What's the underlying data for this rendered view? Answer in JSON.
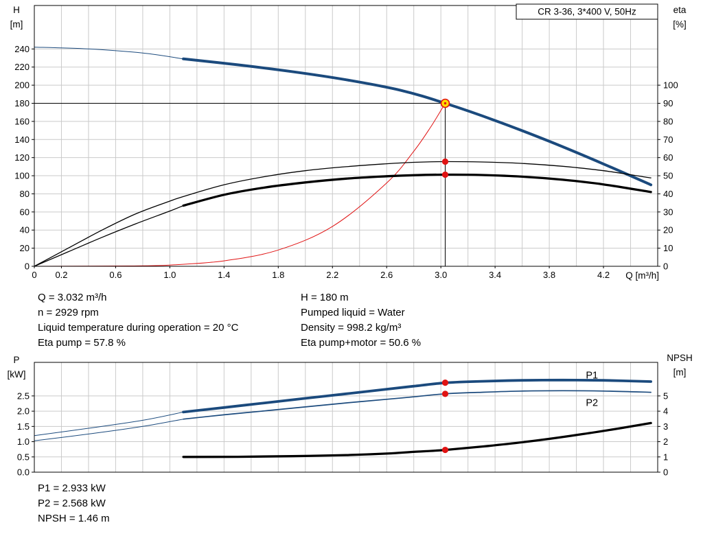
{
  "colors": {
    "blue": "#1b4a7d",
    "red": "#e01212",
    "black": "#000000",
    "grid": "#cacaca",
    "marker_yellow": "#ffdc00"
  },
  "axis_labels": {
    "top_left_name": "H",
    "top_left_unit": "[m]",
    "top_right_name": "eta",
    "top_right_unit": "[%]",
    "x_label": "Q [m³/h]",
    "bottom_left_name": "P",
    "bottom_left_unit": "[kW]",
    "bottom_right_name": "NPSH",
    "bottom_right_unit": "[m]"
  },
  "info_top": {
    "left": [
      "Q = 3.032 m³/h",
      "n = 2929 rpm",
      "Liquid temperature during operation = 20 °C",
      "Eta pump = 57.8 %"
    ],
    "right": [
      "H = 180 m",
      "Pumped liquid = Water",
      "Density = 998.2 kg/m³",
      "Eta pump+motor = 50.6 %"
    ]
  },
  "info_bottom": [
    "P1 = 2.933 kW",
    "P2 = 2.568 kW",
    "NPSH = 1.46 m"
  ],
  "chart_data": [
    {
      "name": "qh-eta-chart",
      "type": "line",
      "title": "CR 3-36, 3*400 V, 50Hz",
      "x": {
        "label": "Q [m³/h]",
        "min": 0,
        "max": 4.6,
        "minor_step": 0.2,
        "ticks": [
          0,
          0.2,
          0.6,
          1,
          1.4,
          1.8,
          2.2,
          2.6,
          3,
          3.4,
          3.8,
          4.2
        ],
        "tick_labels": [
          "0",
          "0.2",
          "0.6",
          "1.0",
          "1.4",
          "1.8",
          "2.2",
          "2.6",
          "3.0",
          "3.4",
          "3.8",
          "4.2"
        ]
      },
      "y_left": {
        "label": "H [m]",
        "min": 0,
        "max": 288,
        "ticks": [
          0,
          20,
          40,
          60,
          80,
          100,
          120,
          140,
          160,
          180,
          200,
          220,
          240
        ],
        "tick_labels": [
          "0",
          "20",
          "40",
          "60",
          "80",
          "100",
          "120",
          "140",
          "160",
          "180",
          "200",
          "220",
          "240"
        ]
      },
      "y_right": {
        "label": "eta [%]",
        "min": 0,
        "max": 144,
        "ticks": [
          0,
          10,
          20,
          30,
          40,
          50,
          60,
          70,
          80,
          90,
          100
        ],
        "tick_labels": [
          "0",
          "10",
          "20",
          "30",
          "40",
          "50",
          "60",
          "70",
          "80",
          "90",
          "100"
        ]
      },
      "series": [
        {
          "name": "pump-curve",
          "axis": "left",
          "color": "blue",
          "width": 4,
          "points": [
            [
              1.1,
              229
            ],
            [
              1.5,
              222.5
            ],
            [
              1.9,
              215
            ],
            [
              2.3,
              206
            ],
            [
              2.7,
              194.5
            ],
            [
              3.032,
              180
            ],
            [
              3.4,
              161
            ],
            [
              3.8,
              138
            ],
            [
              4.2,
              113
            ],
            [
              4.55,
              90
            ]
          ]
        },
        {
          "name": "pump-curve-low-flow",
          "axis": "left",
          "color": "blue",
          "width": 1,
          "points": [
            [
              0,
              242
            ],
            [
              0.4,
              240
            ],
            [
              0.8,
              235.5
            ],
            [
              1.1,
              229
            ]
          ]
        },
        {
          "name": "system-curve",
          "axis": "left",
          "color": "red",
          "width": 1,
          "points": [
            [
              0,
              0
            ],
            [
              0.7,
              0.4
            ],
            [
              1,
              1.4
            ],
            [
              1.4,
              6
            ],
            [
              1.8,
              18
            ],
            [
              2.2,
              44
            ],
            [
              2.6,
              92
            ],
            [
              2.8,
              127
            ],
            [
              2.93,
              155
            ],
            [
              3.032,
              180
            ]
          ]
        },
        {
          "name": "eta-pump",
          "axis": "right",
          "color": "black",
          "width": 1.3,
          "points": [
            [
              0,
              0
            ],
            [
              0.25,
              10
            ],
            [
              0.5,
              20
            ],
            [
              0.75,
              29
            ],
            [
              1,
              36
            ],
            [
              1.1,
              38.5
            ],
            [
              1.4,
              45
            ],
            [
              1.7,
              49.5
            ],
            [
              2,
              52.8
            ],
            [
              2.3,
              55
            ],
            [
              2.6,
              56.6
            ],
            [
              2.8,
              57.4
            ],
            [
              3.032,
              57.8
            ],
            [
              3.3,
              57.6
            ],
            [
              3.6,
              56.8
            ],
            [
              3.9,
              55.2
            ],
            [
              4.2,
              52.8
            ],
            [
              4.55,
              48.8
            ]
          ]
        },
        {
          "name": "eta-pump-motor",
          "axis": "right",
          "color": "black",
          "width": 3.3,
          "points": [
            [
              1.1,
              33.5
            ],
            [
              1.4,
              39.5
            ],
            [
              1.7,
              43.5
            ],
            [
              2,
              46.3
            ],
            [
              2.3,
              48.4
            ],
            [
              2.6,
              49.7
            ],
            [
              2.8,
              50.3
            ],
            [
              3.032,
              50.6
            ],
            [
              3.3,
              50.4
            ],
            [
              3.6,
              49.5
            ],
            [
              3.9,
              47.8
            ],
            [
              4.2,
              45.2
            ],
            [
              4.55,
              41
            ]
          ]
        },
        {
          "name": "eta-pump-motor-low-flow",
          "axis": "right",
          "color": "black",
          "width": 1.3,
          "points": [
            [
              0,
              0
            ],
            [
              0.25,
              8
            ],
            [
              0.5,
              16
            ],
            [
              0.75,
              23.5
            ],
            [
              1,
              30.5
            ],
            [
              1.1,
              33.5
            ]
          ]
        }
      ],
      "guides": [
        {
          "type": "v",
          "x": 3.032,
          "y0": 0,
          "y1": 183
        },
        {
          "type": "h",
          "y": 180,
          "x0": 0,
          "x1": 3.032
        }
      ],
      "markers": [
        {
          "x": 3.032,
          "y": 180,
          "axis": "left",
          "style": "duty"
        },
        {
          "x": 3.032,
          "y": 57.8,
          "axis": "right",
          "style": "dot"
        },
        {
          "x": 3.032,
          "y": 50.6,
          "axis": "right",
          "style": "dot"
        }
      ],
      "duty_point": {
        "Q_m3h": 3.032,
        "H_m": 180,
        "eta_pump_pct": 57.8,
        "eta_pump_motor_pct": 50.6
      }
    },
    {
      "name": "power-npsh-chart",
      "type": "line",
      "x": {
        "min": 0,
        "max": 4.6,
        "minor_step": 0.2,
        "ticks": [],
        "tick_labels": []
      },
      "y_left": {
        "label": "P [kW]",
        "min": 0,
        "max": 3.6,
        "ticks": [
          0,
          0.5,
          1,
          1.5,
          2,
          2.5
        ],
        "tick_labels": [
          "0.0",
          "0.5",
          "1.0",
          "1.5",
          "2.0",
          "2.5"
        ]
      },
      "y_right": {
        "label": "NPSH [m]",
        "min": 0,
        "max": 7.2,
        "ticks": [
          0,
          1,
          2,
          3,
          4,
          5
        ],
        "tick_labels": [
          "0",
          "1",
          "2",
          "3",
          "4",
          "5"
        ]
      },
      "series": [
        {
          "name": "p1-curve",
          "axis": "left",
          "color": "blue",
          "width": 3.8,
          "points": [
            [
              1.1,
              1.97
            ],
            [
              1.4,
              2.12
            ],
            [
              1.7,
              2.27
            ],
            [
              2,
              2.42
            ],
            [
              2.3,
              2.57
            ],
            [
              2.6,
              2.72
            ],
            [
              2.8,
              2.82
            ],
            [
              3.032,
              2.93
            ],
            [
              3.3,
              2.98
            ],
            [
              3.6,
              3.01
            ],
            [
              3.9,
              3.02
            ],
            [
              4.2,
              3.01
            ],
            [
              4.55,
              2.97
            ]
          ]
        },
        {
          "name": "p1-curve-low-flow",
          "axis": "left",
          "color": "blue",
          "width": 1,
          "points": [
            [
              0,
              1.2
            ],
            [
              0.4,
              1.44
            ],
            [
              0.8,
              1.7
            ],
            [
              1.1,
              1.97
            ]
          ]
        },
        {
          "name": "p2-curve",
          "axis": "left",
          "color": "blue",
          "width": 1.7,
          "points": [
            [
              1.1,
              1.74
            ],
            [
              1.4,
              1.88
            ],
            [
              1.7,
              2.01
            ],
            [
              2,
              2.14
            ],
            [
              2.3,
              2.27
            ],
            [
              2.6,
              2.39
            ],
            [
              2.8,
              2.47
            ],
            [
              3.032,
              2.57
            ],
            [
              3.3,
              2.62
            ],
            [
              3.6,
              2.66
            ],
            [
              3.9,
              2.67
            ],
            [
              4.2,
              2.66
            ],
            [
              4.55,
              2.62
            ]
          ]
        },
        {
          "name": "p2-curve-low-flow",
          "axis": "left",
          "color": "blue",
          "width": 1,
          "points": [
            [
              0,
              1.03
            ],
            [
              0.4,
              1.25
            ],
            [
              0.8,
              1.5
            ],
            [
              1.1,
              1.74
            ]
          ]
        },
        {
          "name": "npsh-curve",
          "axis": "right",
          "color": "black",
          "width": 3.3,
          "points": [
            [
              1.1,
              1
            ],
            [
              1.5,
              1.01
            ],
            [
              1.9,
              1.05
            ],
            [
              2.3,
              1.12
            ],
            [
              2.6,
              1.22
            ],
            [
              2.8,
              1.33
            ],
            [
              3.032,
              1.46
            ],
            [
              3.35,
              1.72
            ],
            [
              3.7,
              2.07
            ],
            [
              4.05,
              2.5
            ],
            [
              4.35,
              2.92
            ],
            [
              4.55,
              3.22
            ]
          ]
        }
      ],
      "labels": [
        {
          "text": "P1",
          "x": 4.07,
          "y": 3.18,
          "axis": "left",
          "color": "blue"
        },
        {
          "text": "P2",
          "x": 4.07,
          "y": 2.28,
          "axis": "left",
          "color": "blue"
        }
      ],
      "markers": [
        {
          "x": 3.032,
          "y": 2.933,
          "axis": "left",
          "style": "dot"
        },
        {
          "x": 3.032,
          "y": 2.568,
          "axis": "left",
          "style": "dot"
        },
        {
          "x": 3.032,
          "y": 1.46,
          "axis": "right",
          "style": "dot"
        }
      ],
      "duty_point": {
        "P1_kW": 2.933,
        "P2_kW": 2.568,
        "NPSH_m": 1.46
      }
    }
  ]
}
